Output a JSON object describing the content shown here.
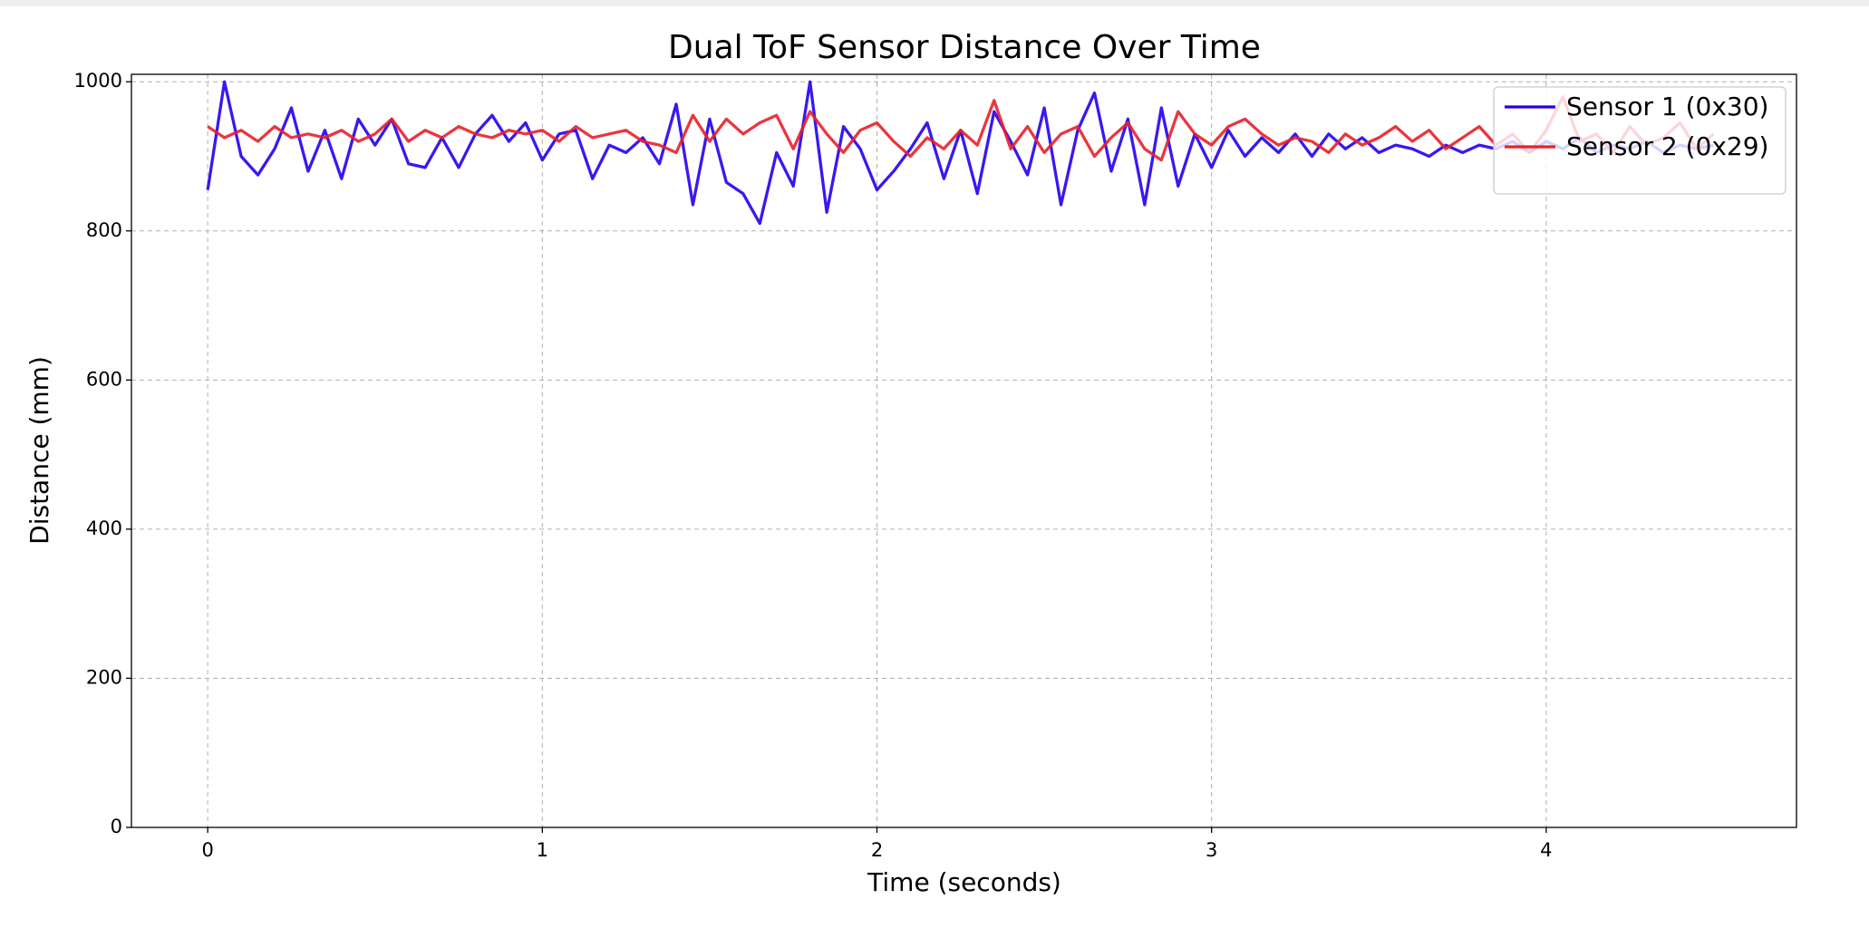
{
  "chart_data": {
    "type": "line",
    "title": "Dual ToF Sensor Distance Over Time",
    "x_label": "Time (seconds)",
    "y_label": "Distance (mm)",
    "x": [
      0,
      0.05,
      0.1,
      0.15,
      0.2,
      0.25,
      0.3,
      0.35,
      0.4,
      0.45,
      0.5,
      0.55,
      0.6,
      0.65,
      0.7,
      0.75,
      0.8,
      0.85,
      0.9,
      0.95,
      1,
      1.05,
      1.1,
      1.15,
      1.2,
      1.25,
      1.3,
      1.35,
      1.4,
      1.45,
      1.5,
      1.55,
      1.6,
      1.65,
      1.7,
      1.75,
      1.8,
      1.85,
      1.9,
      1.95,
      2,
      2.05,
      2.1,
      2.15,
      2.2,
      2.25,
      2.3,
      2.35,
      2.4,
      2.45,
      2.5,
      2.55,
      2.6,
      2.65,
      2.7,
      2.75,
      2.8,
      2.85,
      2.9,
      2.95,
      3,
      3.05,
      3.1,
      3.15,
      3.2,
      3.25,
      3.3,
      3.35,
      3.4,
      3.45,
      3.5,
      3.55,
      3.6,
      3.65,
      3.7,
      3.75,
      3.8,
      3.85,
      3.9,
      3.95,
      4,
      4.05,
      4.1,
      4.15,
      4.2,
      4.25,
      4.3,
      4.35,
      4.4,
      4.45,
      4.5
    ],
    "series": [
      {
        "name": "Sensor 1 (0x30)",
        "color": "#2200ee",
        "values": [
          855,
          1000,
          900,
          875,
          910,
          965,
          880,
          935,
          870,
          950,
          915,
          950,
          890,
          885,
          925,
          885,
          930,
          955,
          920,
          945,
          895,
          930,
          935,
          870,
          915,
          905,
          925,
          890,
          970,
          835,
          950,
          865,
          850,
          810,
          905,
          860,
          1000,
          825,
          940,
          910,
          855,
          880,
          910,
          945,
          870,
          935,
          850,
          960,
          920,
          875,
          965,
          835,
          935,
          985,
          880,
          950,
          835,
          965,
          860,
          930,
          885,
          935,
          900,
          925,
          905,
          930,
          900,
          930,
          910,
          925,
          905,
          915,
          910,
          900,
          915,
          905,
          915,
          910,
          920,
          905,
          920,
          910,
          925,
          905,
          915,
          910,
          920,
          905,
          915,
          910,
          915
        ]
      },
      {
        "name": "Sensor 2 (0x29)",
        "color": "#e8202a",
        "values": [
          940,
          925,
          935,
          920,
          940,
          925,
          930,
          925,
          935,
          920,
          930,
          950,
          920,
          935,
          925,
          940,
          930,
          925,
          935,
          930,
          935,
          920,
          940,
          925,
          930,
          935,
          920,
          915,
          905,
          955,
          920,
          950,
          930,
          945,
          955,
          910,
          960,
          930,
          905,
          935,
          945,
          920,
          900,
          925,
          910,
          935,
          915,
          975,
          910,
          940,
          905,
          930,
          940,
          900,
          925,
          945,
          910,
          895,
          960,
          930,
          915,
          940,
          950,
          930,
          915,
          925,
          920,
          905,
          930,
          915,
          925,
          940,
          920,
          935,
          910,
          925,
          940,
          915,
          930,
          905,
          935,
          980,
          920,
          930,
          905,
          940,
          915,
          925,
          945,
          910,
          930
        ]
      }
    ],
    "xlim": [
      -0.228,
      4.748
    ],
    "xticks": [
      0,
      1,
      2,
      3,
      4
    ],
    "ylim": [
      0,
      1010
    ],
    "yticks": [
      0,
      200,
      400,
      600,
      800,
      1000
    ],
    "grid": true,
    "legend": "upper right"
  }
}
